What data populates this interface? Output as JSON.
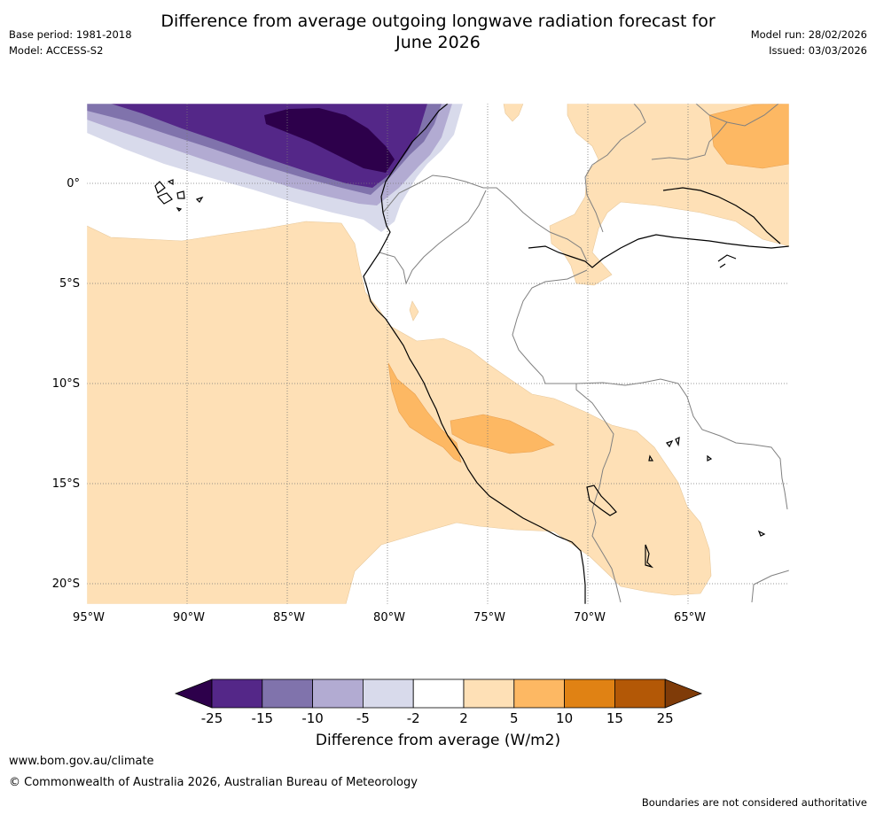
{
  "title_line1": "Difference from average outgoing longwave radiation forecast for",
  "title_line2": "June 2026",
  "base_period": "Base period: 1981-2018",
  "model": "Model: ACCESS-S2",
  "model_run": "Model run: 28/02/2026",
  "issued": "Issued: 03/03/2026",
  "lat_ticks": [
    "0°",
    "5°S",
    "10°S",
    "15°S",
    "20°S"
  ],
  "lon_ticks": [
    "95°W",
    "90°W",
    "85°W",
    "80°W",
    "75°W",
    "70°W",
    "65°W"
  ],
  "colorbar": {
    "title": "Difference from average (W/m2)",
    "tick_labels": [
      "-25",
      "-15",
      "-10",
      "-5",
      "-2",
      "2",
      "5",
      "10",
      "15",
      "25"
    ],
    "colors": {
      "below_-25": "#2d004b",
      "-25_-15": "#542788",
      "-15_-10": "#8073ac",
      "-10_-5": "#b2abd2",
      "-5_-2": "#d8daeb",
      "-2_2": "#ffffff",
      "2_5": "#fee0b6",
      "5_10": "#fdb863",
      "10_15": "#e08214",
      "15_25": "#b35806",
      "above_25": "#7f3b08"
    }
  },
  "footer_url": "www.bom.gov.au/climate",
  "footer_copyright": "© Commonwealth of Australia 2026, Australian Bureau of Meteorology",
  "footer_note": "Boundaries are not considered authoritative"
}
